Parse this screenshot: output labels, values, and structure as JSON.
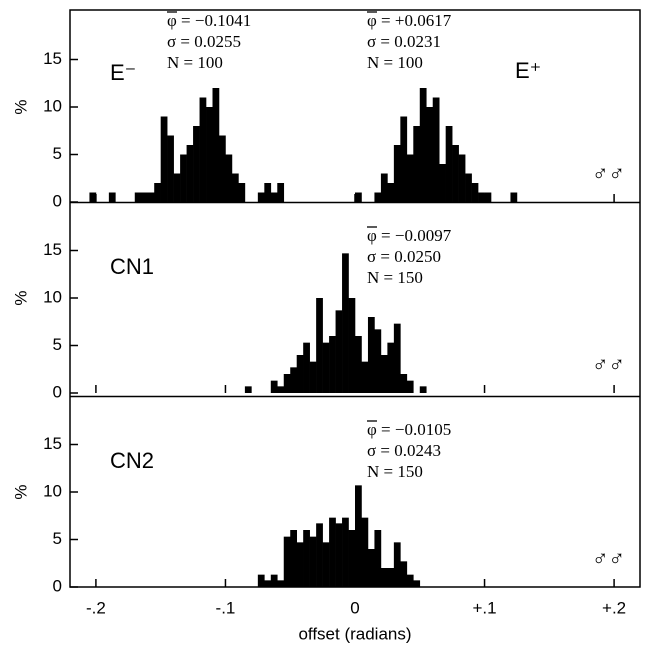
{
  "chart_data": [
    {
      "type": "histogram",
      "ylabel": "%",
      "labels": [
        "E⁻",
        "E⁺"
      ],
      "symbol": "♂♂",
      "annotations": [
        [
          "φ = −0.1041",
          "σ = 0.0255",
          "N = 100"
        ],
        [
          "φ = +0.0617",
          "σ = 0.0231",
          "N = 100"
        ]
      ],
      "color": "#000000",
      "ylim": [
        0,
        20
      ],
      "yticks": [
        0,
        5,
        10,
        15
      ],
      "xlim": [
        -0.22,
        0.22
      ],
      "bins": [
        -0.21,
        -0.205,
        -0.2,
        -0.195,
        -0.19,
        -0.185,
        -0.18,
        -0.175,
        -0.17,
        -0.165,
        -0.16,
        -0.155,
        -0.15,
        -0.145,
        -0.14,
        -0.135,
        -0.13,
        -0.125,
        -0.12,
        -0.115,
        -0.11,
        -0.105,
        -0.1,
        -0.095,
        -0.09,
        -0.085,
        -0.08,
        -0.075,
        -0.07,
        -0.065,
        -0.06,
        -0.055,
        -0.05,
        -0.045,
        -0.04,
        -0.035,
        -0.03,
        -0.025,
        -0.02,
        -0.015,
        -0.01,
        -0.005,
        0,
        0.005,
        0.01,
        0.015,
        0.02,
        0.025,
        0.03,
        0.035,
        0.04,
        0.045,
        0.05,
        0.055,
        0.06,
        0.065,
        0.07,
        0.075,
        0.08,
        0.085,
        0.09,
        0.095,
        0.1,
        0.105,
        0.11,
        0.115,
        0.12,
        0.125,
        0.13
      ],
      "values": [
        0,
        1,
        0,
        0,
        1,
        0,
        0,
        0,
        1,
        1,
        1,
        2,
        9,
        7,
        3,
        5,
        6,
        8,
        11,
        10,
        12,
        7,
        5,
        3,
        2,
        0,
        0,
        1,
        2,
        1,
        2,
        0,
        0,
        0,
        0,
        0,
        0,
        0,
        0,
        0,
        0,
        0,
        1,
        0,
        0,
        1,
        3,
        2,
        6,
        9,
        5,
        8,
        12,
        10,
        11,
        4,
        8,
        6,
        5,
        3,
        2,
        1,
        1,
        0,
        0,
        0,
        1,
        0
      ]
    },
    {
      "type": "histogram",
      "ylabel": "%",
      "labels": [
        "CN1"
      ],
      "symbol": "♂♂",
      "annotations": [
        [
          "φ = −0.0097",
          "σ = 0.0250",
          "N = 150"
        ]
      ],
      "color": "#000000",
      "ylim": [
        0,
        20
      ],
      "yticks": [
        0,
        5,
        10,
        15
      ],
      "xlim": [
        -0.22,
        0.22
      ],
      "bins": [
        -0.21,
        -0.205,
        -0.2,
        -0.195,
        -0.19,
        -0.185,
        -0.18,
        -0.175,
        -0.17,
        -0.165,
        -0.16,
        -0.155,
        -0.15,
        -0.145,
        -0.14,
        -0.135,
        -0.13,
        -0.125,
        -0.12,
        -0.115,
        -0.11,
        -0.105,
        -0.1,
        -0.095,
        -0.09,
        -0.085,
        -0.08,
        -0.075,
        -0.07,
        -0.065,
        -0.06,
        -0.055,
        -0.05,
        -0.045,
        -0.04,
        -0.035,
        -0.03,
        -0.025,
        -0.02,
        -0.015,
        -0.01,
        -0.005,
        0,
        0.005,
        0.01,
        0.015,
        0.02,
        0.025,
        0.03,
        0.035,
        0.04,
        0.045,
        0.05,
        0.055,
        0.06,
        0.065,
        0.07,
        0.075,
        0.08,
        0.085,
        0.09,
        0.095,
        0.1,
        0.105,
        0.11,
        0.115,
        0.12,
        0.125,
        0.13
      ],
      "values": [
        0,
        0,
        0,
        0,
        0,
        0,
        0,
        0,
        0,
        0,
        0,
        0,
        0,
        0,
        0,
        0,
        0,
        0,
        0,
        0,
        0,
        0,
        0,
        0,
        0,
        0.7,
        0,
        0,
        0,
        1.3,
        0.7,
        2,
        2.7,
        4,
        5.3,
        3.3,
        10,
        5.3,
        6,
        8.7,
        14.7,
        10,
        6,
        3.3,
        8,
        6.7,
        4,
        5.3,
        7.3,
        2,
        1.3,
        0,
        0.7,
        0,
        0,
        0,
        0,
        0,
        0,
        0,
        0,
        0,
        0,
        0,
        0,
        0,
        0,
        0
      ]
    },
    {
      "type": "histogram",
      "ylabel": "%",
      "labels": [
        "CN2"
      ],
      "symbol": "♂♂",
      "annotations": [
        [
          "φ = −0.0105",
          "σ = 0.0243",
          "N = 150"
        ]
      ],
      "color": "#000000",
      "ylim": [
        0,
        20
      ],
      "yticks": [
        0,
        5,
        10,
        15
      ],
      "xlim": [
        -0.22,
        0.22
      ],
      "xlabel": "offset (radians)",
      "xticks": [
        {
          "value": -0.2,
          "label": "-.2"
        },
        {
          "value": -0.1,
          "label": "-.1"
        },
        0,
        {
          "value": 0.1,
          "label": "+.1"
        },
        {
          "value": 0.2,
          "label": "+.2"
        }
      ],
      "bins": [
        -0.21,
        -0.205,
        -0.2,
        -0.195,
        -0.19,
        -0.185,
        -0.18,
        -0.175,
        -0.17,
        -0.165,
        -0.16,
        -0.155,
        -0.15,
        -0.145,
        -0.14,
        -0.135,
        -0.13,
        -0.125,
        -0.12,
        -0.115,
        -0.11,
        -0.105,
        -0.1,
        -0.095,
        -0.09,
        -0.085,
        -0.08,
        -0.075,
        -0.07,
        -0.065,
        -0.06,
        -0.055,
        -0.05,
        -0.045,
        -0.04,
        -0.035,
        -0.03,
        -0.025,
        -0.02,
        -0.015,
        -0.01,
        -0.005,
        0,
        0.005,
        0.01,
        0.015,
        0.02,
        0.025,
        0.03,
        0.035,
        0.04,
        0.045,
        0.05,
        0.055,
        0.06,
        0.065,
        0.07,
        0.075,
        0.08,
        0.085,
        0.09,
        0.095,
        0.1,
        0.105,
        0.11,
        0.115,
        0.12,
        0.125,
        0.13
      ],
      "values": [
        0,
        0,
        0,
        0,
        0,
        0,
        0,
        0,
        0,
        0,
        0,
        0,
        0,
        0,
        0,
        0,
        0,
        0,
        0,
        0,
        0,
        0,
        0,
        0,
        0,
        0,
        0,
        1.3,
        0.7,
        1.3,
        0.7,
        5.3,
        6,
        4.7,
        6,
        5.3,
        6.7,
        4.7,
        7.3,
        6.7,
        7.3,
        6,
        10.7,
        7.3,
        4,
        6,
        2,
        2,
        4.7,
        2.7,
        1.3,
        0.7,
        0,
        0,
        0,
        0,
        0,
        0,
        0,
        0,
        0,
        0,
        0,
        0,
        0,
        0,
        0,
        0
      ]
    }
  ]
}
